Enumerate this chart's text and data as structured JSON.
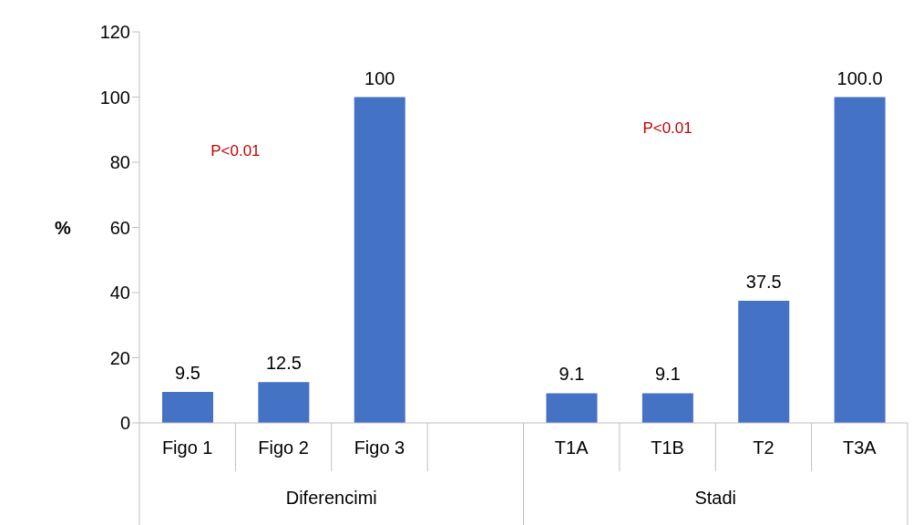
{
  "chart_data": {
    "type": "bar",
    "categories": [
      "Figo 1",
      "Figo 2",
      "Figo 3",
      null,
      "T1A",
      "T1B",
      "T2",
      "T3A"
    ],
    "values": [
      9.5,
      12.5,
      100,
      null,
      9.1,
      9.1,
      37.5,
      100
    ],
    "value_labels": [
      "9.5",
      "12.5",
      "100",
      null,
      "9.1",
      "9.1",
      "37.5",
      "100.0"
    ],
    "color": "#4472c4",
    "ylabel": "%",
    "ylim": [
      0,
      120
    ],
    "yticks": [
      0,
      20,
      40,
      60,
      80,
      100,
      120
    ],
    "grid": false,
    "legend": false,
    "annotations": [
      "P<0.01",
      "P<0.01",
      "Diferencimi",
      "Stadi"
    ]
  }
}
